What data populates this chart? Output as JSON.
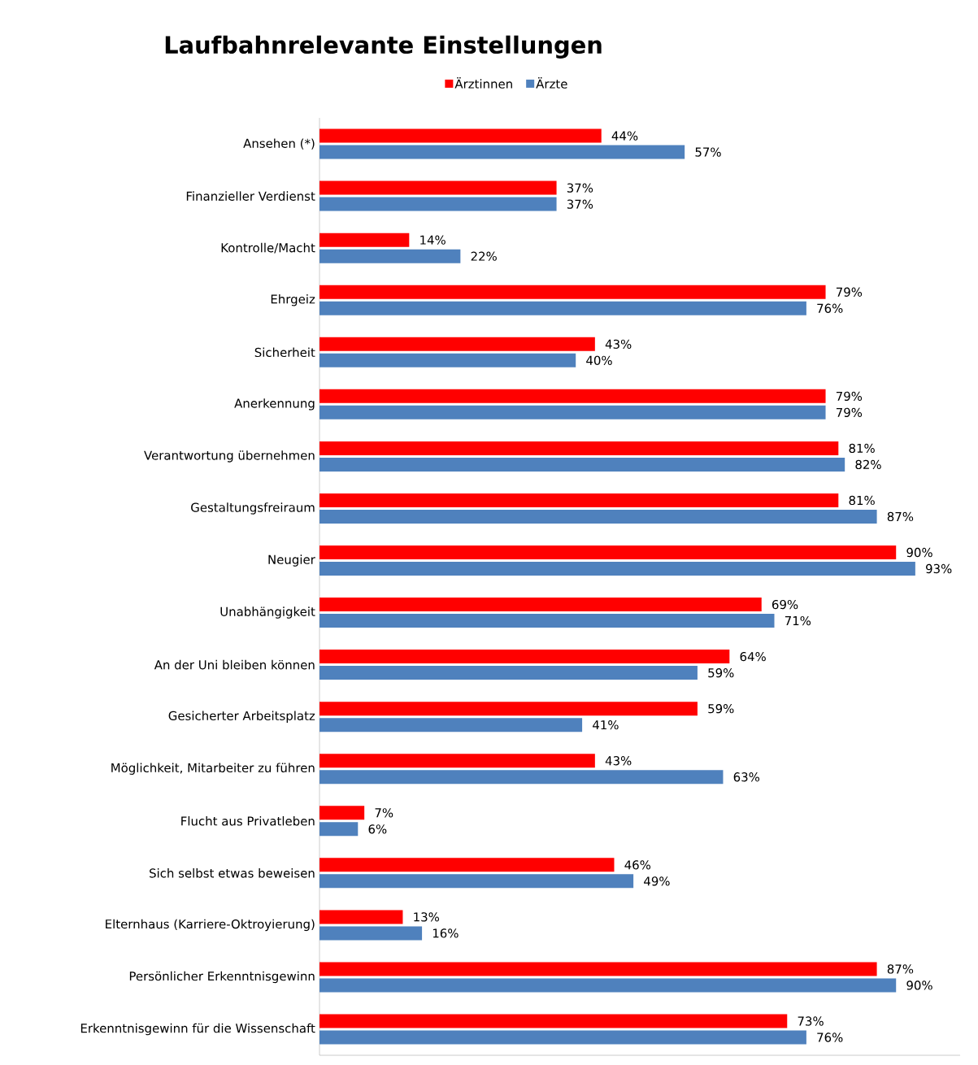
{
  "chart_data": {
    "type": "bar",
    "orientation": "horizontal",
    "title": "Laufbahnrelevante Einstellungen",
    "categories": [
      "Ansehen (*)",
      "Finanzieller Verdienst",
      "Kontrolle/Macht",
      "Ehrgeiz",
      "Sicherheit",
      "Anerkennung",
      "Verantwortung übernehmen",
      "Gestaltungsfreiraum",
      "Neugier",
      "Unabhängigkeit",
      "An der Uni bleiben können",
      "Gesicherter Arbeitsplatz",
      "Möglichkeit, Mitarbeiter zu führen",
      "Flucht aus Privatleben",
      "Sich selbst etwas beweisen",
      "Elternhaus (Karriere-Oktroyierung)",
      "Persönlicher Erkenntnisgewinn",
      "Erkenntnisgewinn für die Wissenschaft"
    ],
    "series": [
      {
        "name": "Ärztinnen",
        "color": "#ff0000",
        "values": [
          44,
          37,
          14,
          79,
          43,
          79,
          81,
          81,
          90,
          69,
          64,
          59,
          43,
          7,
          46,
          13,
          87,
          73
        ],
        "value_labels": [
          "44%",
          "37%",
          "14%",
          "79%",
          "43%",
          "79%",
          "81%",
          "81%",
          "90%",
          "69%",
          "64%",
          "59%",
          "43%",
          "7%",
          "46%",
          "13%",
          "87%",
          "73%"
        ]
      },
      {
        "name": "Ärzte",
        "color": "#4f81bd",
        "values": [
          57,
          37,
          22,
          76,
          40,
          79,
          82,
          87,
          93,
          71,
          59,
          41,
          63,
          6,
          49,
          16,
          90,
          76
        ],
        "value_labels": [
          "57%",
          "37%",
          "22%",
          "76%",
          "40%",
          "79%",
          "82%",
          "87%",
          "93%",
          "71%",
          "59%",
          "41%",
          "63%",
          "6%",
          "49%",
          "16%",
          "90%",
          "76%"
        ]
      }
    ],
    "xlim": [
      0,
      100
    ],
    "tick_labels": "y",
    "legend": "top"
  }
}
